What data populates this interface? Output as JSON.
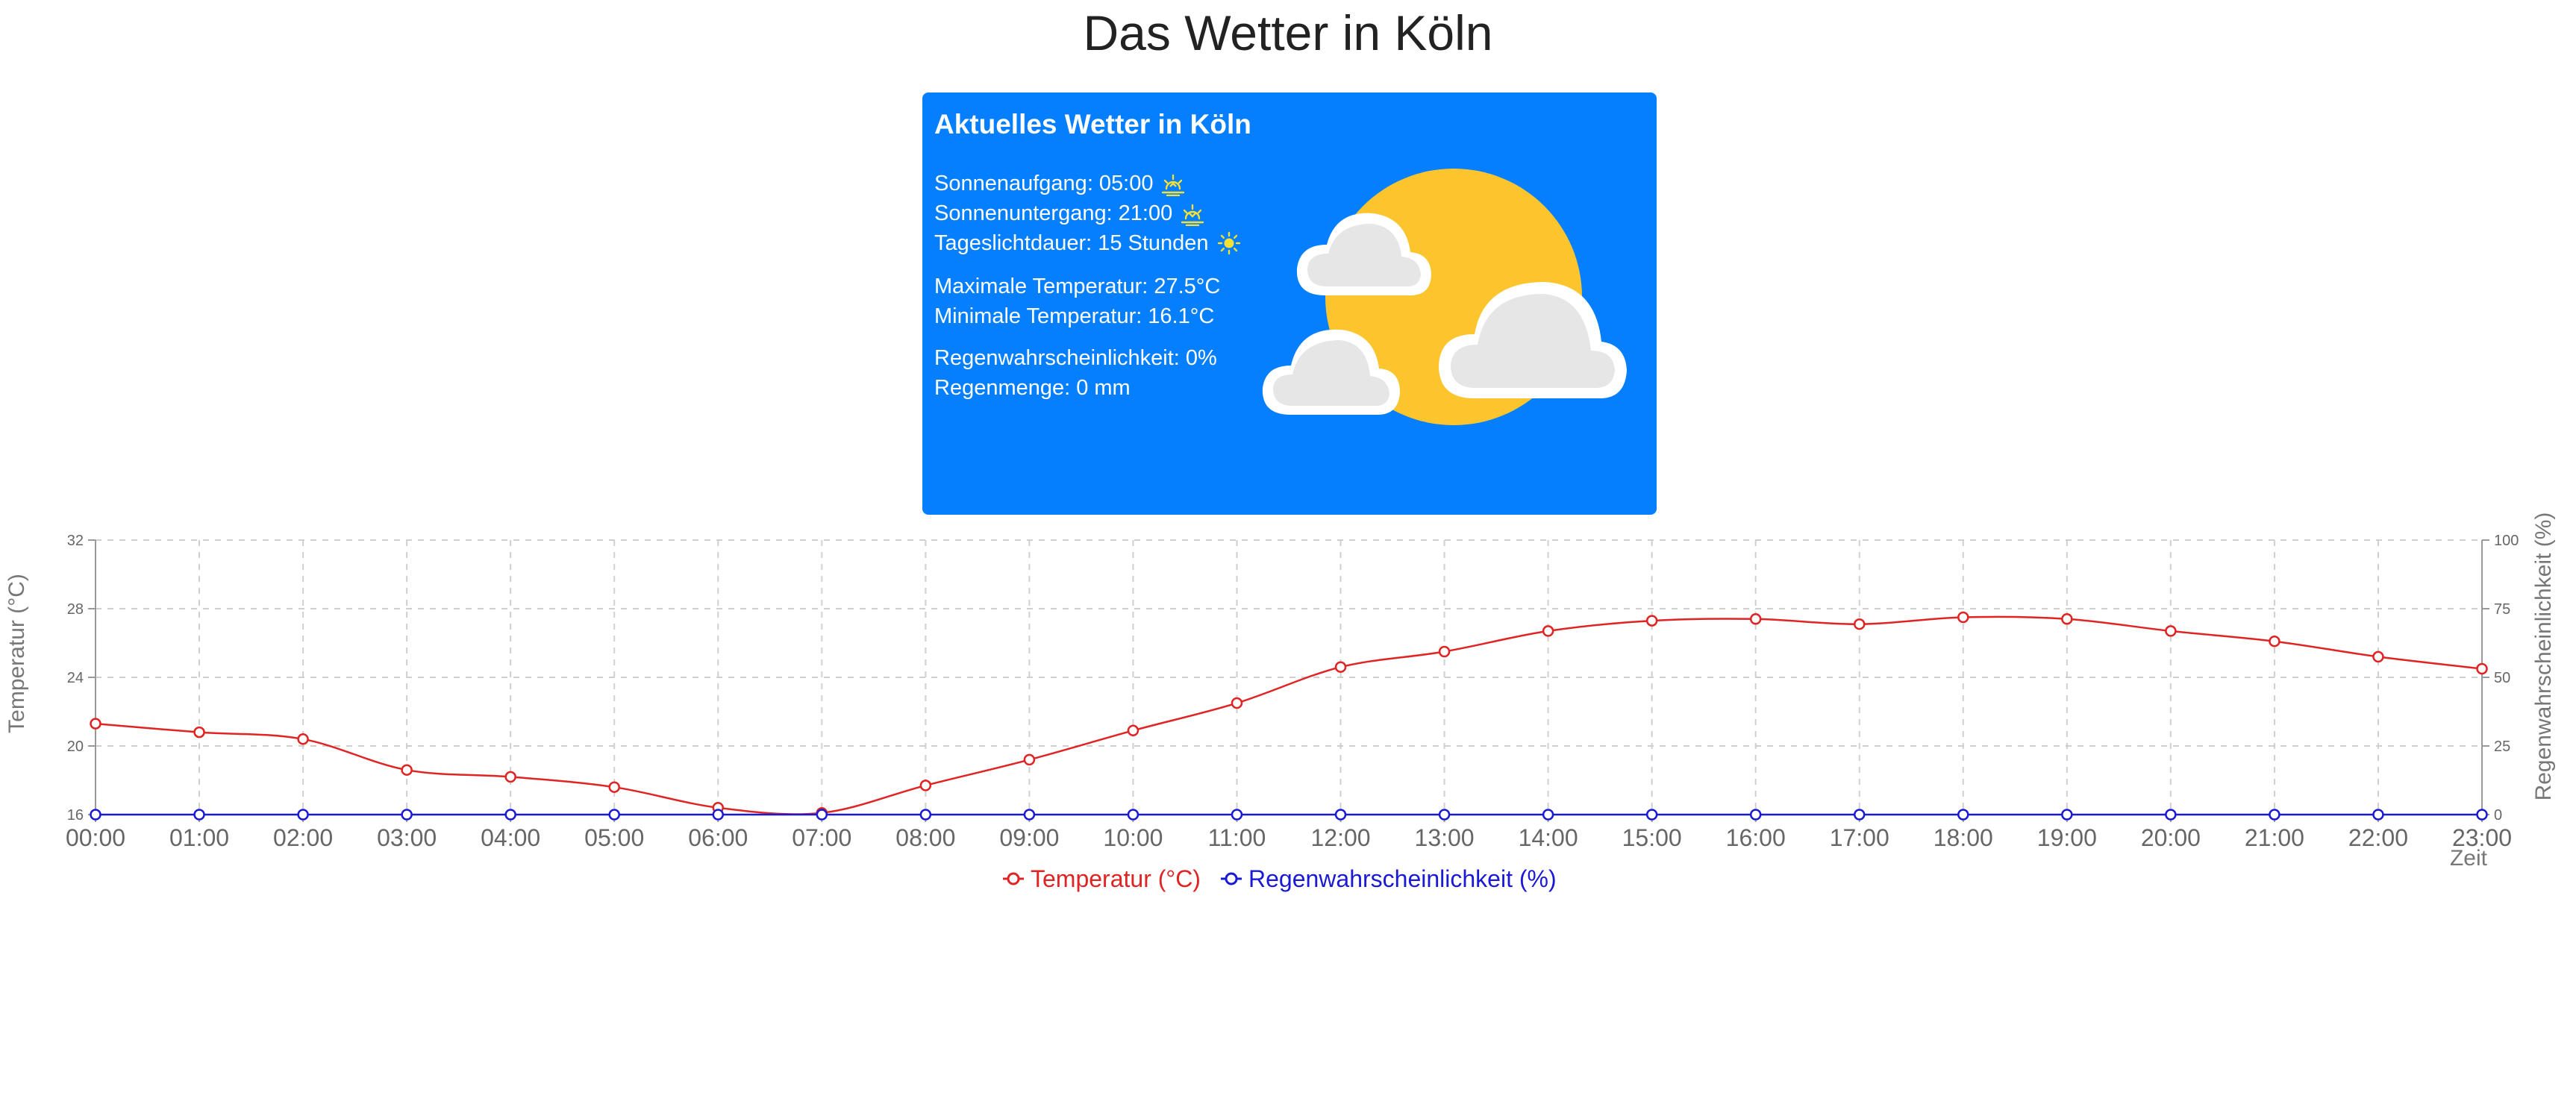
{
  "page_title": "Das Wetter in Köln",
  "card": {
    "title": "Aktuelles Wetter in Köln",
    "sunrise_label": "Sonnenaufgang:",
    "sunrise_value": "05:00",
    "sunset_label": "Sonnenuntergang:",
    "sunset_value": "21:00",
    "daylight_label": "Tageslichtdauer:",
    "daylight_value": "15 Stunden",
    "max_temp_label": "Maximale Temperatur:",
    "max_temp_value": "27.5°C",
    "min_temp_label": "Minimale Temperatur:",
    "min_temp_value": "16.1°C",
    "rain_prob_label": "Regenwahrscheinlichkeit:",
    "rain_prob_value": "0%",
    "rain_amount_label": "Regenmenge:",
    "rain_amount_value": "0 mm",
    "background_color": "#057ffe",
    "sunrise_icon": "sunrise-icon",
    "sunset_icon": "sunset-icon",
    "daylight_icon": "sun-icon",
    "illustration_icon": "partly-cloudy-icon"
  },
  "chart_data": {
    "type": "line",
    "x": [
      "00:00",
      "01:00",
      "02:00",
      "03:00",
      "04:00",
      "05:00",
      "06:00",
      "07:00",
      "08:00",
      "09:00",
      "10:00",
      "11:00",
      "12:00",
      "13:00",
      "14:00",
      "15:00",
      "16:00",
      "17:00",
      "18:00",
      "19:00",
      "20:00",
      "21:00",
      "22:00",
      "23:00"
    ],
    "xlabel": "Zeit",
    "series": [
      {
        "name": "Temperatur (°C)",
        "axis": "left",
        "color": "#e02424",
        "values": [
          21.3,
          20.8,
          20.4,
          18.6,
          18.2,
          17.6,
          16.4,
          16.1,
          17.7,
          19.2,
          20.9,
          22.5,
          24.6,
          25.5,
          26.7,
          27.3,
          27.4,
          27.1,
          27.5,
          27.4,
          26.7,
          26.1,
          25.2,
          24.5
        ]
      },
      {
        "name": "Regenwahrscheinlichkeit (%)",
        "axis": "right",
        "color": "#1a1ad6",
        "values": [
          0,
          0,
          0,
          0,
          0,
          0,
          0,
          0,
          0,
          0,
          0,
          0,
          0,
          0,
          0,
          0,
          0,
          0,
          0,
          0,
          0,
          0,
          0,
          0
        ]
      }
    ],
    "y_left": {
      "label": "Temperatur (°C)",
      "range": [
        16,
        32
      ],
      "ticks": [
        "16",
        "20",
        "24",
        "28",
        "32"
      ]
    },
    "y_right": {
      "label": "Regenwahrscheinlichkeit (%)",
      "range": [
        0,
        100
      ],
      "ticks": [
        "0",
        "25",
        "50",
        "75",
        "100"
      ]
    },
    "grid": true,
    "legend_position": "bottom-center"
  }
}
